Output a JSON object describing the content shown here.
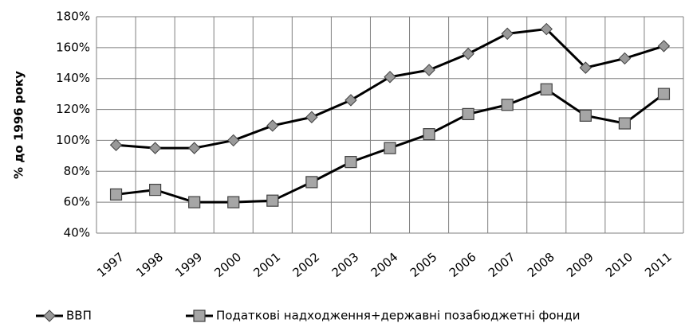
{
  "chart_data": {
    "type": "line",
    "y_label": "% до 1996 року",
    "categories": [
      "1997",
      "1998",
      "1999",
      "2000",
      "2001",
      "2002",
      "2003",
      "2004",
      "2005",
      "2006",
      "2007",
      "2008",
      "2009",
      "2010",
      "2011"
    ],
    "series": [
      {
        "name": "ВВП",
        "color": "#000000",
        "marker": "diamond",
        "marker_color": "#999999",
        "values": [
          97,
          95,
          95,
          100,
          109.5,
          115,
          126,
          141,
          145.5,
          156,
          169,
          172,
          147,
          153,
          161
        ]
      },
      {
        "name": "Податкові надходження+державні позабюджетні фонди",
        "color": "#000000",
        "marker": "square",
        "marker_color": "#a6a6a6",
        "values": [
          65,
          68,
          60,
          60,
          61,
          73,
          86,
          95,
          104,
          117,
          123,
          133,
          116,
          111,
          130
        ]
      }
    ],
    "ylim": [
      40,
      180
    ],
    "yticks": [
      {
        "value": 40,
        "label": "40%"
      },
      {
        "value": 60,
        "label": "60%"
      },
      {
        "value": 80,
        "label": "80%"
      },
      {
        "value": 100,
        "label": "100%"
      },
      {
        "value": 120,
        "label": "120%"
      },
      {
        "value": 140,
        "label": "140%"
      },
      {
        "value": 160,
        "label": "160%"
      },
      {
        "value": 180,
        "label": "180%"
      }
    ],
    "grid": true,
    "legend": "bottom"
  }
}
